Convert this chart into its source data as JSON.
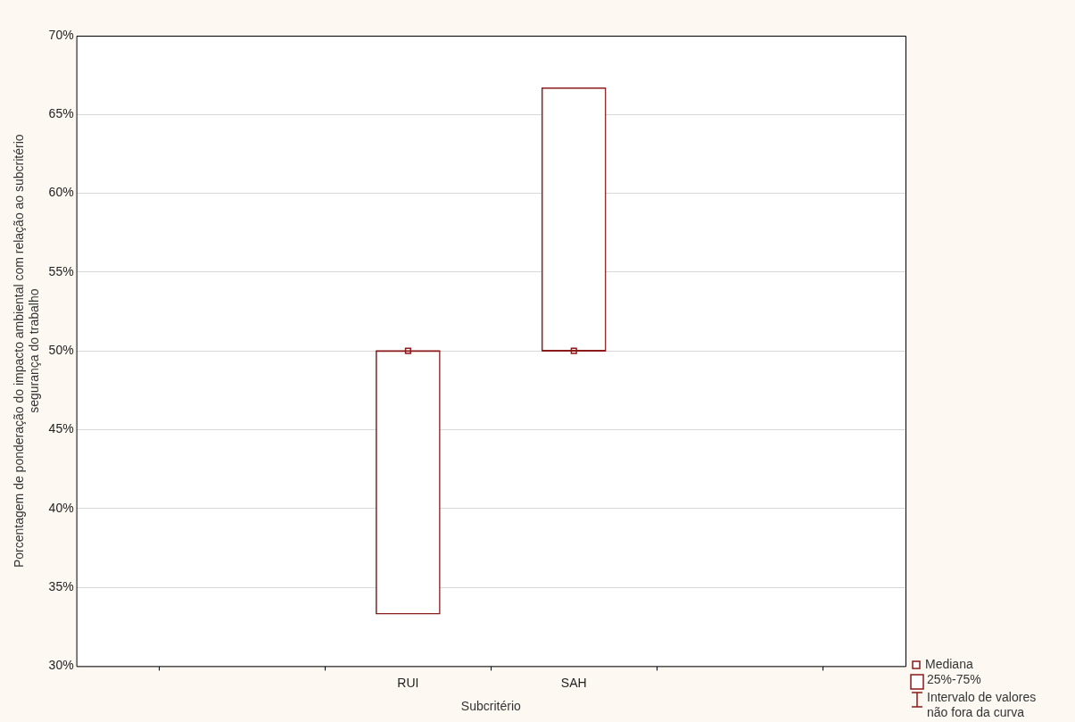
{
  "chart_data": {
    "type": "box",
    "xlabel": "Subcritério",
    "ylabel": "Porcentagem de ponderação do impacto ambiental com relação ao subcritério\nsegurança do trabalho",
    "categories": [
      "RUI",
      "SAH"
    ],
    "boxes": [
      {
        "low": 33.3,
        "q1": 33.3,
        "median": 50,
        "q3": 50,
        "high": 50
      },
      {
        "low": 50,
        "q1": 50,
        "median": 50,
        "q3": 66.7,
        "high": 66.7
      }
    ],
    "color": "#8b1a1a",
    "series": [
      {
        "type": "scatter",
        "x": [
          "RUI",
          "SAH"
        ],
        "values": [
          50,
          50
        ],
        "color": "#8b1a1a",
        "marker": "square"
      }
    ],
    "ylim": [
      30,
      70
    ],
    "yticks": [
      {
        "value": 30,
        "label": "30%"
      },
      {
        "value": 35,
        "label": "35%"
      },
      {
        "value": 40,
        "label": "40%"
      },
      {
        "value": 45,
        "label": "45%"
      },
      {
        "value": 50,
        "label": "50%"
      },
      {
        "value": 55,
        "label": "55%"
      },
      {
        "value": 60,
        "label": "60%"
      },
      {
        "value": 65,
        "label": "65%"
      },
      {
        "value": 70,
        "label": "70%"
      }
    ],
    "grid": "y",
    "annotations": [
      "Mediana",
      "25%-75%",
      "Intervalo de valores não fora da curva"
    ]
  }
}
